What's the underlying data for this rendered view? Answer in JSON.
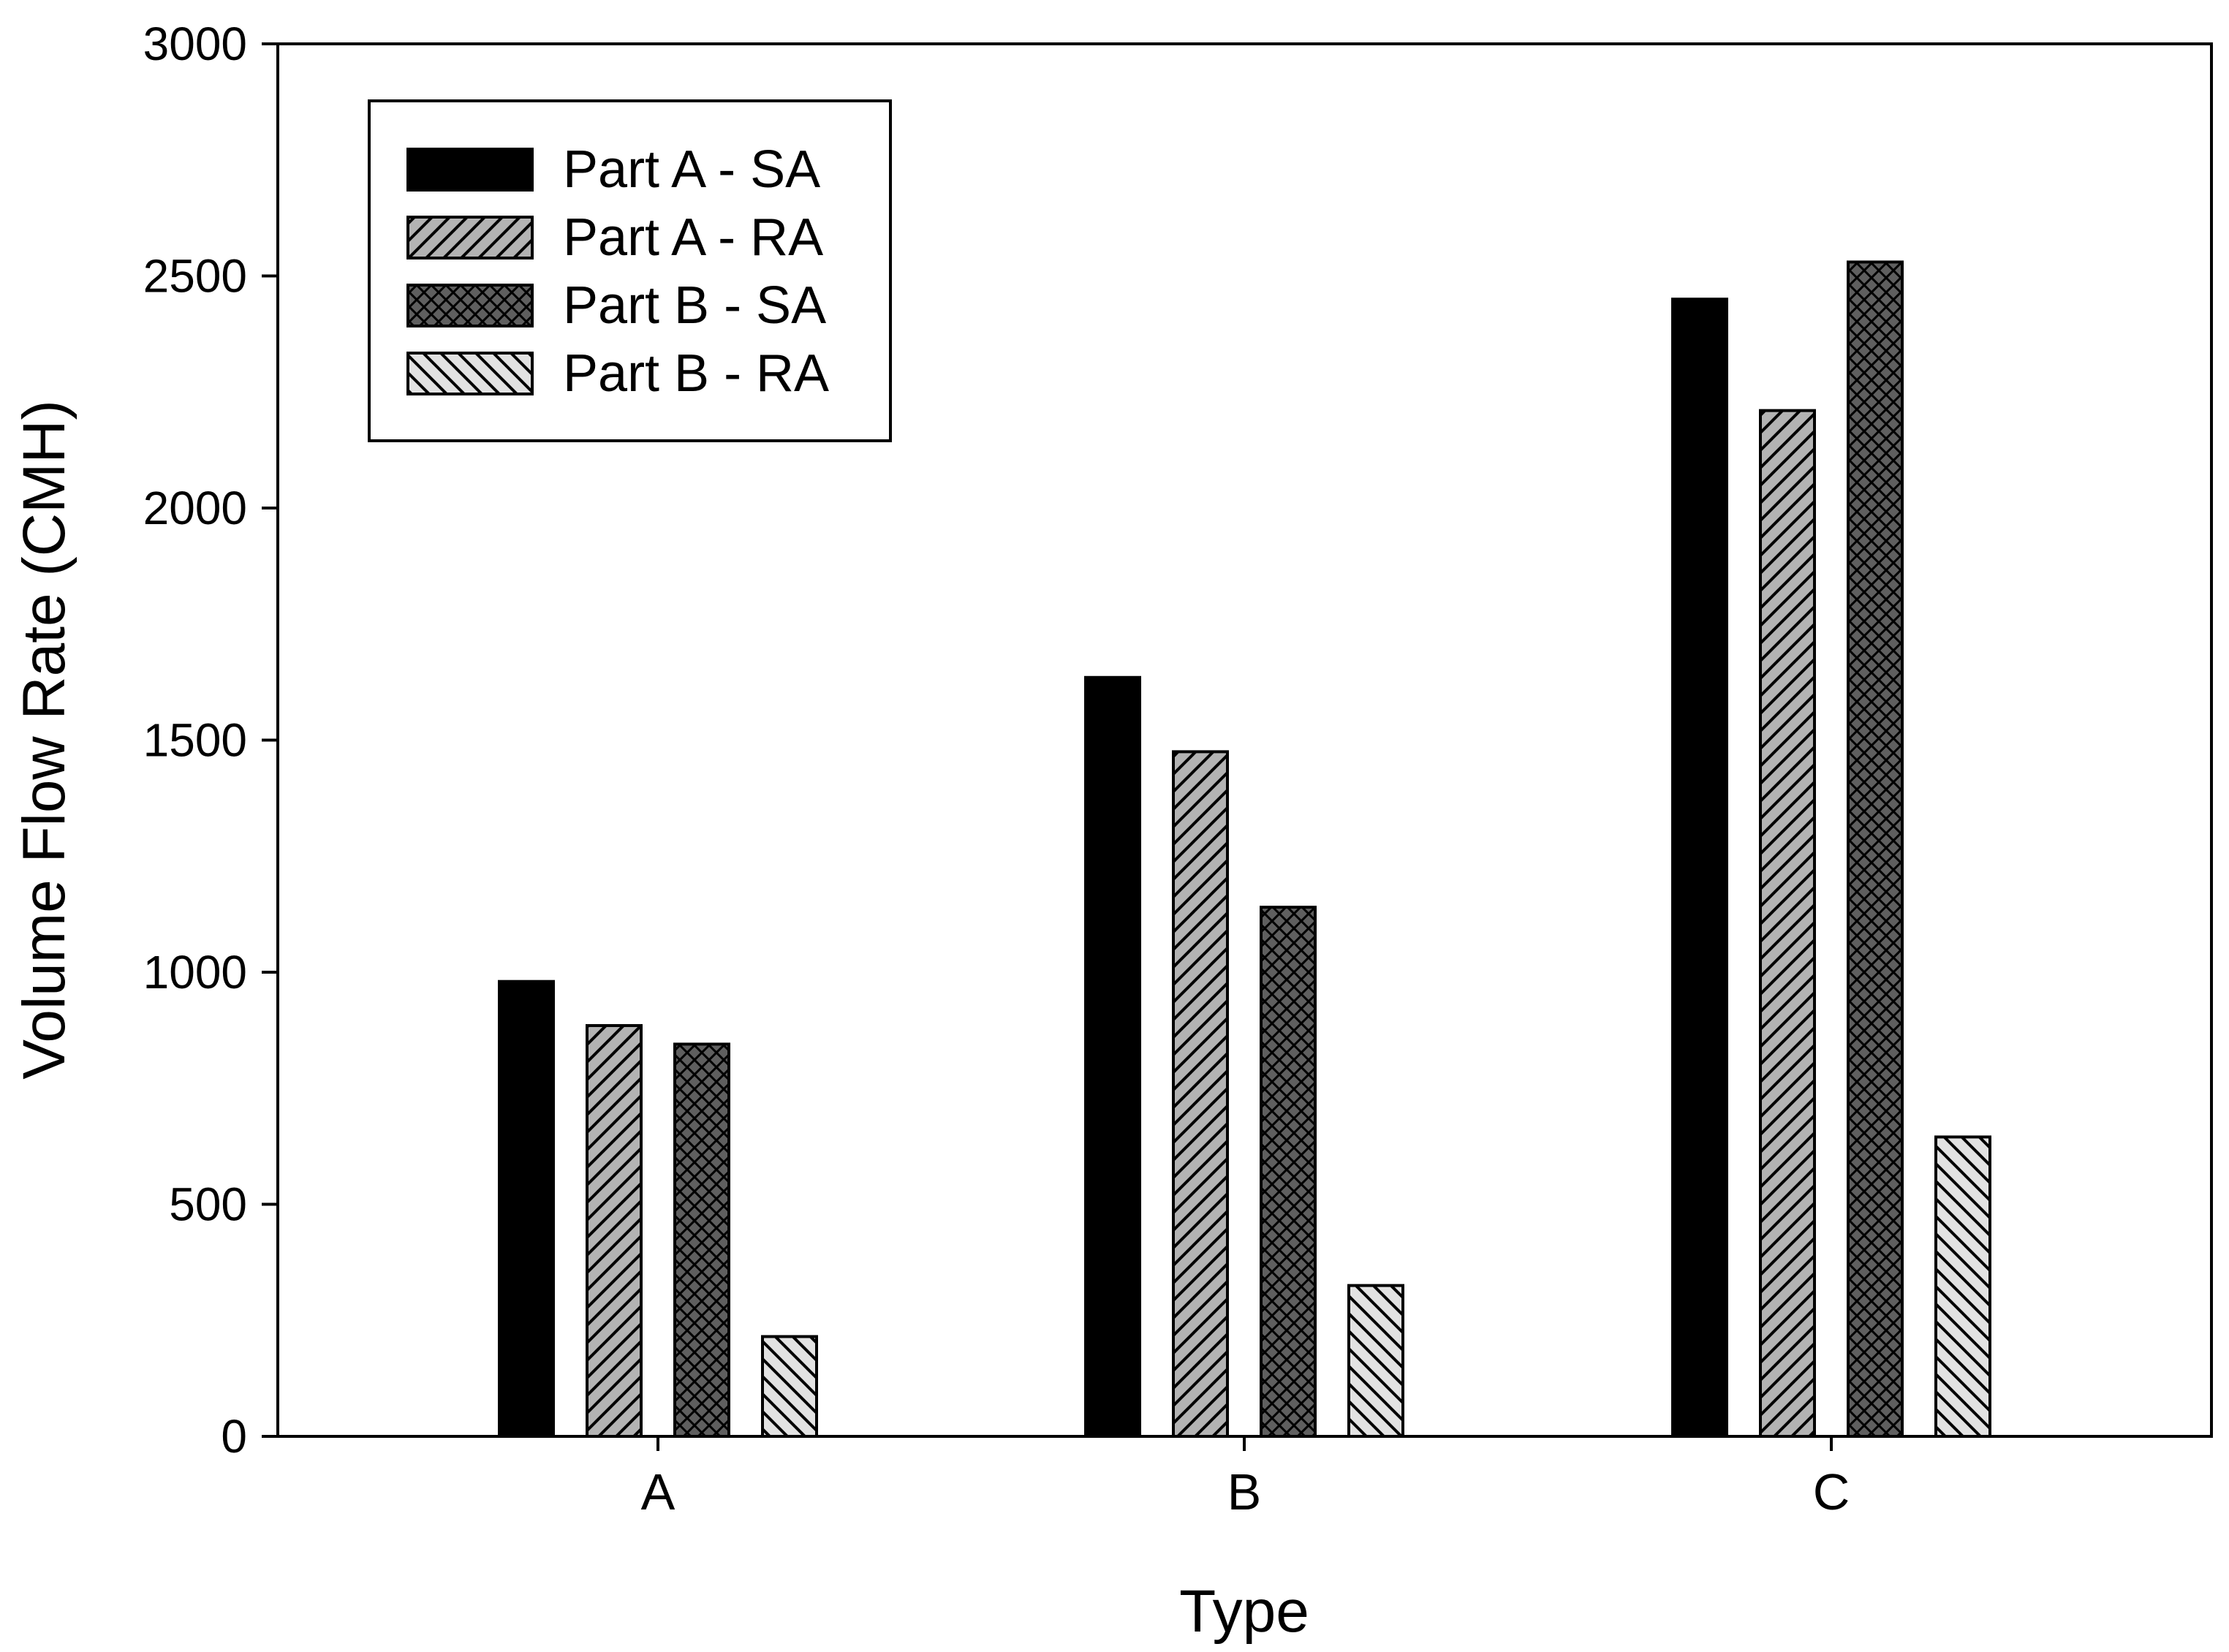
{
  "chart_data": {
    "type": "bar",
    "title": "",
    "xlabel": "Type",
    "ylabel": "Volume Flow Rate (CMH)",
    "categories": [
      "A",
      "B",
      "C"
    ],
    "ylim": [
      0,
      3000
    ],
    "yticks": [
      0,
      500,
      1000,
      1500,
      2000,
      2500,
      3000
    ],
    "grid": false,
    "legend_position": "top-left",
    "series": [
      {
        "name": "Part A - SA",
        "values": [
          980,
          1635,
          2450
        ],
        "fill": "#000000",
        "pattern": "solid"
      },
      {
        "name": "Part A - RA",
        "values": [
          885,
          1475,
          2210
        ],
        "fill": "#b3b3b3",
        "pattern": "diagonal-right"
      },
      {
        "name": "Part B - SA",
        "values": [
          845,
          1140,
          2530
        ],
        "fill": "#5f5f5f",
        "pattern": "crosshatch"
      },
      {
        "name": "Part B - RA",
        "values": [
          215,
          325,
          645
        ],
        "fill": "#e2e2e2",
        "pattern": "diagonal-left"
      }
    ]
  }
}
